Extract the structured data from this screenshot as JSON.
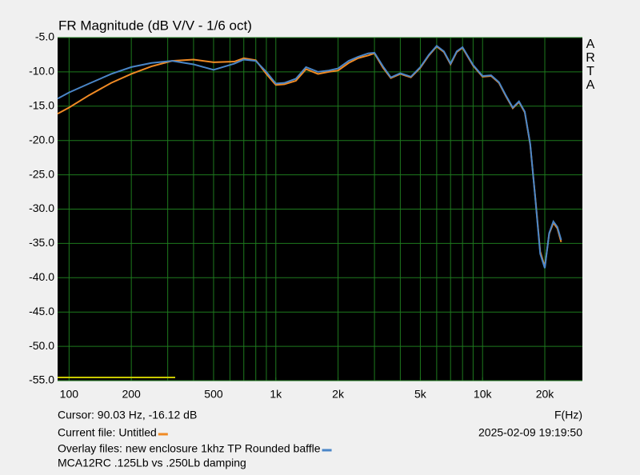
{
  "chart_data": {
    "type": "line",
    "title": "FR Magnitude (dB V/V - 1/6 oct)",
    "watermark": "ARTA",
    "x_axis_label": "F(Hz)",
    "cursor_text": "Cursor: 90.03 Hz, -16.12 dB",
    "current_file_label": "Current file:",
    "overlay_files_label": "Overlay files:",
    "overlay_note": "MCA12RC .125Lb vs .250Lb damping",
    "timestamp": "2025-02-09  19:19:50",
    "log_x": true,
    "grid": true,
    "xlim": [
      88,
      30400
    ],
    "ylim": [
      -55,
      -5
    ],
    "xticks": [
      {
        "value": 100,
        "label": "100"
      },
      {
        "value": 200,
        "label": "200"
      },
      {
        "value": 500,
        "label": "500"
      },
      {
        "value": 1000,
        "label": "1k"
      },
      {
        "value": 2000,
        "label": "2k"
      },
      {
        "value": 5000,
        "label": "5k"
      },
      {
        "value": 10000,
        "label": "10k"
      },
      {
        "value": 20000,
        "label": "20k"
      }
    ],
    "xgrid": [
      100,
      200,
      300,
      400,
      500,
      600,
      700,
      800,
      900,
      1000,
      2000,
      3000,
      4000,
      5000,
      6000,
      7000,
      8000,
      9000,
      10000,
      20000
    ],
    "yticks": [
      {
        "value": -5,
        "label": "-5.0"
      },
      {
        "value": -10,
        "label": "-10.0"
      },
      {
        "value": -15,
        "label": "-15.0"
      },
      {
        "value": -20,
        "label": "-20.0"
      },
      {
        "value": -25,
        "label": "-25.0"
      },
      {
        "value": -30,
        "label": "-30.0"
      },
      {
        "value": -35,
        "label": "-35.0"
      },
      {
        "value": -40,
        "label": "-40.0"
      },
      {
        "value": -45,
        "label": "-45.0"
      },
      {
        "value": -50,
        "label": "-50.0"
      },
      {
        "value": -55,
        "label": "-55.0"
      }
    ],
    "x": [
      88,
      100,
      125,
      160,
      200,
      250,
      315,
      400,
      500,
      630,
      700,
      800,
      900,
      1000,
      1100,
      1250,
      1400,
      1600,
      1800,
      2000,
      2250,
      2500,
      2800,
      3000,
      3300,
      3600,
      4000,
      4500,
      5000,
      5500,
      6000,
      6500,
      7000,
      7500,
      8000,
      9000,
      10000,
      11000,
      12000,
      13000,
      14000,
      15000,
      16000,
      17000,
      18000,
      19000,
      20000,
      21000,
      22000,
      23000,
      24000
    ],
    "series": [
      {
        "name": "Untitled",
        "color": "#f08a24",
        "values": [
          -16.1,
          -15.2,
          -13.4,
          -11.6,
          -10.3,
          -9.2,
          -8.4,
          -8.2,
          -8.6,
          -8.5,
          -8.0,
          -8.3,
          -10.3,
          -11.9,
          -11.8,
          -11.3,
          -9.6,
          -10.3,
          -10.0,
          -9.8,
          -8.7,
          -8.0,
          -7.6,
          -7.3,
          -9.4,
          -10.9,
          -10.3,
          -10.8,
          -9.4,
          -7.6,
          -6.3,
          -7.1,
          -8.9,
          -7.1,
          -6.5,
          -9.1,
          -10.7,
          -10.6,
          -11.6,
          -13.6,
          -15.3,
          -14.4,
          -15.9,
          -20.6,
          -28.4,
          -36.2,
          -38.4,
          -33.6,
          -32.0,
          -32.8,
          -34.8
        ]
      },
      {
        "name": "new enclosure 1khz TP Rounded baffle",
        "color": "#4a86c8",
        "values": [
          -13.9,
          -13.0,
          -11.7,
          -10.3,
          -9.3,
          -8.7,
          -8.4,
          -8.9,
          -9.7,
          -8.8,
          -8.2,
          -8.4,
          -10.0,
          -11.7,
          -11.6,
          -11.0,
          -9.3,
          -10.0,
          -9.8,
          -9.5,
          -8.4,
          -7.8,
          -7.3,
          -7.2,
          -9.2,
          -10.8,
          -10.2,
          -10.7,
          -9.3,
          -7.5,
          -6.2,
          -7.0,
          -8.8,
          -7.0,
          -6.4,
          -9.0,
          -10.6,
          -10.5,
          -11.5,
          -13.5,
          -15.2,
          -14.3,
          -15.8,
          -20.5,
          -28.5,
          -36.5,
          -38.6,
          -33.5,
          -31.8,
          -32.6,
          -34.5
        ]
      }
    ]
  }
}
